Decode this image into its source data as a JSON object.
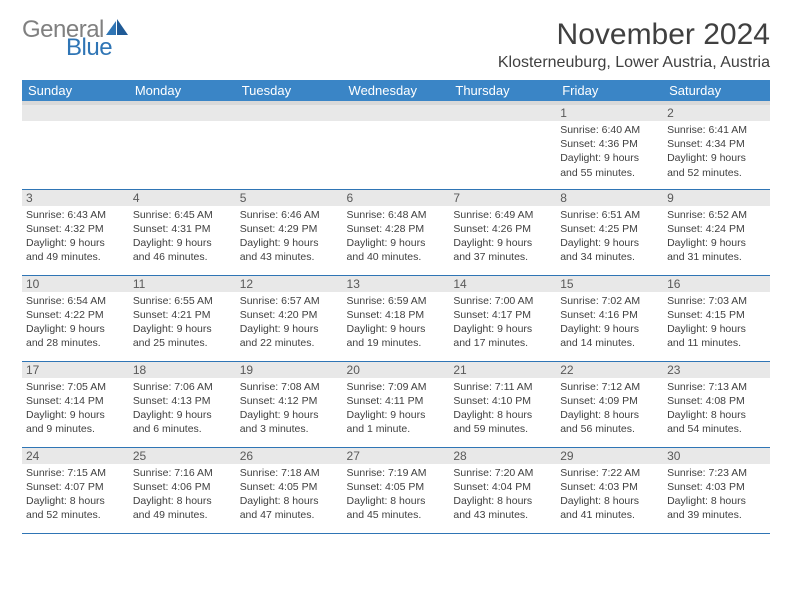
{
  "logo": {
    "text_gray": "General",
    "text_blue": "Blue"
  },
  "title": "November 2024",
  "location": "Klosterneuburg, Lower Austria, Austria",
  "colors": {
    "header_bg": "#3a85c6",
    "header_text": "#ffffff",
    "divider": "#2f75b5",
    "daynum_bg": "#e8e8e8",
    "text": "#404040",
    "logo_gray": "#808080",
    "logo_blue": "#2f75b5"
  },
  "weekdays": [
    "Sunday",
    "Monday",
    "Tuesday",
    "Wednesday",
    "Thursday",
    "Friday",
    "Saturday"
  ],
  "weeks": [
    [
      null,
      null,
      null,
      null,
      null,
      {
        "n": "1",
        "sr": "Sunrise: 6:40 AM",
        "ss": "Sunset: 4:36 PM",
        "d1": "Daylight: 9 hours",
        "d2": "and 55 minutes."
      },
      {
        "n": "2",
        "sr": "Sunrise: 6:41 AM",
        "ss": "Sunset: 4:34 PM",
        "d1": "Daylight: 9 hours",
        "d2": "and 52 minutes."
      }
    ],
    [
      {
        "n": "3",
        "sr": "Sunrise: 6:43 AM",
        "ss": "Sunset: 4:32 PM",
        "d1": "Daylight: 9 hours",
        "d2": "and 49 minutes."
      },
      {
        "n": "4",
        "sr": "Sunrise: 6:45 AM",
        "ss": "Sunset: 4:31 PM",
        "d1": "Daylight: 9 hours",
        "d2": "and 46 minutes."
      },
      {
        "n": "5",
        "sr": "Sunrise: 6:46 AM",
        "ss": "Sunset: 4:29 PM",
        "d1": "Daylight: 9 hours",
        "d2": "and 43 minutes."
      },
      {
        "n": "6",
        "sr": "Sunrise: 6:48 AM",
        "ss": "Sunset: 4:28 PM",
        "d1": "Daylight: 9 hours",
        "d2": "and 40 minutes."
      },
      {
        "n": "7",
        "sr": "Sunrise: 6:49 AM",
        "ss": "Sunset: 4:26 PM",
        "d1": "Daylight: 9 hours",
        "d2": "and 37 minutes."
      },
      {
        "n": "8",
        "sr": "Sunrise: 6:51 AM",
        "ss": "Sunset: 4:25 PM",
        "d1": "Daylight: 9 hours",
        "d2": "and 34 minutes."
      },
      {
        "n": "9",
        "sr": "Sunrise: 6:52 AM",
        "ss": "Sunset: 4:24 PM",
        "d1": "Daylight: 9 hours",
        "d2": "and 31 minutes."
      }
    ],
    [
      {
        "n": "10",
        "sr": "Sunrise: 6:54 AM",
        "ss": "Sunset: 4:22 PM",
        "d1": "Daylight: 9 hours",
        "d2": "and 28 minutes."
      },
      {
        "n": "11",
        "sr": "Sunrise: 6:55 AM",
        "ss": "Sunset: 4:21 PM",
        "d1": "Daylight: 9 hours",
        "d2": "and 25 minutes."
      },
      {
        "n": "12",
        "sr": "Sunrise: 6:57 AM",
        "ss": "Sunset: 4:20 PM",
        "d1": "Daylight: 9 hours",
        "d2": "and 22 minutes."
      },
      {
        "n": "13",
        "sr": "Sunrise: 6:59 AM",
        "ss": "Sunset: 4:18 PM",
        "d1": "Daylight: 9 hours",
        "d2": "and 19 minutes."
      },
      {
        "n": "14",
        "sr": "Sunrise: 7:00 AM",
        "ss": "Sunset: 4:17 PM",
        "d1": "Daylight: 9 hours",
        "d2": "and 17 minutes."
      },
      {
        "n": "15",
        "sr": "Sunrise: 7:02 AM",
        "ss": "Sunset: 4:16 PM",
        "d1": "Daylight: 9 hours",
        "d2": "and 14 minutes."
      },
      {
        "n": "16",
        "sr": "Sunrise: 7:03 AM",
        "ss": "Sunset: 4:15 PM",
        "d1": "Daylight: 9 hours",
        "d2": "and 11 minutes."
      }
    ],
    [
      {
        "n": "17",
        "sr": "Sunrise: 7:05 AM",
        "ss": "Sunset: 4:14 PM",
        "d1": "Daylight: 9 hours",
        "d2": "and 9 minutes."
      },
      {
        "n": "18",
        "sr": "Sunrise: 7:06 AM",
        "ss": "Sunset: 4:13 PM",
        "d1": "Daylight: 9 hours",
        "d2": "and 6 minutes."
      },
      {
        "n": "19",
        "sr": "Sunrise: 7:08 AM",
        "ss": "Sunset: 4:12 PM",
        "d1": "Daylight: 9 hours",
        "d2": "and 3 minutes."
      },
      {
        "n": "20",
        "sr": "Sunrise: 7:09 AM",
        "ss": "Sunset: 4:11 PM",
        "d1": "Daylight: 9 hours",
        "d2": "and 1 minute."
      },
      {
        "n": "21",
        "sr": "Sunrise: 7:11 AM",
        "ss": "Sunset: 4:10 PM",
        "d1": "Daylight: 8 hours",
        "d2": "and 59 minutes."
      },
      {
        "n": "22",
        "sr": "Sunrise: 7:12 AM",
        "ss": "Sunset: 4:09 PM",
        "d1": "Daylight: 8 hours",
        "d2": "and 56 minutes."
      },
      {
        "n": "23",
        "sr": "Sunrise: 7:13 AM",
        "ss": "Sunset: 4:08 PM",
        "d1": "Daylight: 8 hours",
        "d2": "and 54 minutes."
      }
    ],
    [
      {
        "n": "24",
        "sr": "Sunrise: 7:15 AM",
        "ss": "Sunset: 4:07 PM",
        "d1": "Daylight: 8 hours",
        "d2": "and 52 minutes."
      },
      {
        "n": "25",
        "sr": "Sunrise: 7:16 AM",
        "ss": "Sunset: 4:06 PM",
        "d1": "Daylight: 8 hours",
        "d2": "and 49 minutes."
      },
      {
        "n": "26",
        "sr": "Sunrise: 7:18 AM",
        "ss": "Sunset: 4:05 PM",
        "d1": "Daylight: 8 hours",
        "d2": "and 47 minutes."
      },
      {
        "n": "27",
        "sr": "Sunrise: 7:19 AM",
        "ss": "Sunset: 4:05 PM",
        "d1": "Daylight: 8 hours",
        "d2": "and 45 minutes."
      },
      {
        "n": "28",
        "sr": "Sunrise: 7:20 AM",
        "ss": "Sunset: 4:04 PM",
        "d1": "Daylight: 8 hours",
        "d2": "and 43 minutes."
      },
      {
        "n": "29",
        "sr": "Sunrise: 7:22 AM",
        "ss": "Sunset: 4:03 PM",
        "d1": "Daylight: 8 hours",
        "d2": "and 41 minutes."
      },
      {
        "n": "30",
        "sr": "Sunrise: 7:23 AM",
        "ss": "Sunset: 4:03 PM",
        "d1": "Daylight: 8 hours",
        "d2": "and 39 minutes."
      }
    ]
  ]
}
